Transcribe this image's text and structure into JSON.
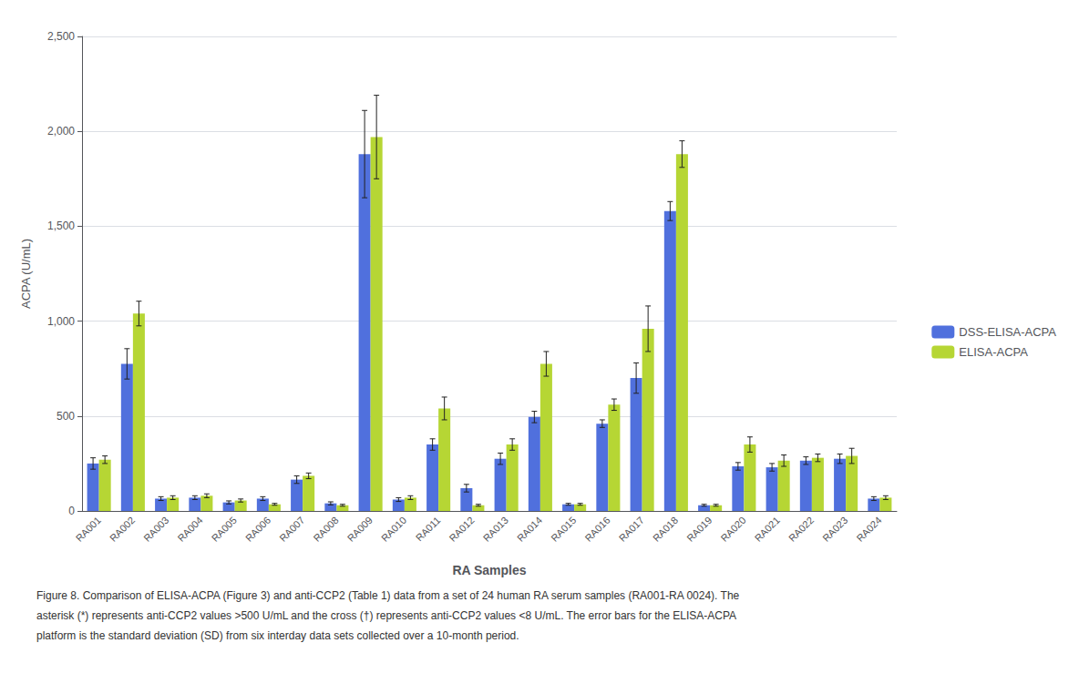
{
  "chart_data": {
    "type": "bar",
    "xlabel": "RA Samples",
    "ylabel": "ACPA (U/mL)",
    "categories": [
      "RA001",
      "RA002",
      "RA003",
      "RA004",
      "RA005",
      "RA006",
      "RA007",
      "RA008",
      "RA009",
      "RA010",
      "RA011",
      "RA012",
      "RA013",
      "RA014",
      "RA015",
      "RA016",
      "RA017",
      "RA018",
      "RA019",
      "RA020",
      "RA021",
      "RA022",
      "RA023",
      "RA024"
    ],
    "series": [
      {
        "name": "DSS-ELISA-ACPA",
        "values": [
          250,
          775,
          65,
          70,
          45,
          65,
          165,
          40,
          1880,
          60,
          350,
          120,
          275,
          495,
          35,
          460,
          700,
          1580,
          30,
          235,
          230,
          265,
          275,
          65
        ],
        "errors": [
          30,
          80,
          10,
          10,
          8,
          10,
          20,
          8,
          230,
          10,
          30,
          20,
          30,
          30,
          5,
          20,
          80,
          50,
          5,
          20,
          20,
          20,
          25,
          10
        ]
      },
      {
        "name": "ELISA-ACPA",
        "values": [
          270,
          1040,
          70,
          80,
          55,
          35,
          185,
          30,
          1970,
          70,
          540,
          30,
          350,
          775,
          35,
          560,
          960,
          1880,
          30,
          350,
          265,
          280,
          290,
          70
        ],
        "errors": [
          20,
          65,
          10,
          10,
          8,
          5,
          15,
          5,
          220,
          10,
          60,
          5,
          30,
          65,
          5,
          30,
          120,
          70,
          5,
          40,
          30,
          20,
          40,
          10
        ]
      }
    ],
    "ylim": [
      0,
      2500
    ],
    "yticks": [
      0,
      500,
      1000,
      1500,
      2000,
      2500
    ],
    "grid": true,
    "legend": "right",
    "annotations": [
      "Figure 8. Comparison of ELISA-ACPA (Figure 3) and anti-CCP2 (Table 1) data from a set of 24 human RA serum samples (RA001-RA 0024). The",
      "asterisk (*) represents anti-CCP2 values >500 U/mL and the cross (†) represents anti-CCP2 values <8 U/mL. The error bars for the ELISA-ACPA",
      "platform is the standard deviation (SD) from six interday data sets collected over a 10-month period."
    ]
  }
}
